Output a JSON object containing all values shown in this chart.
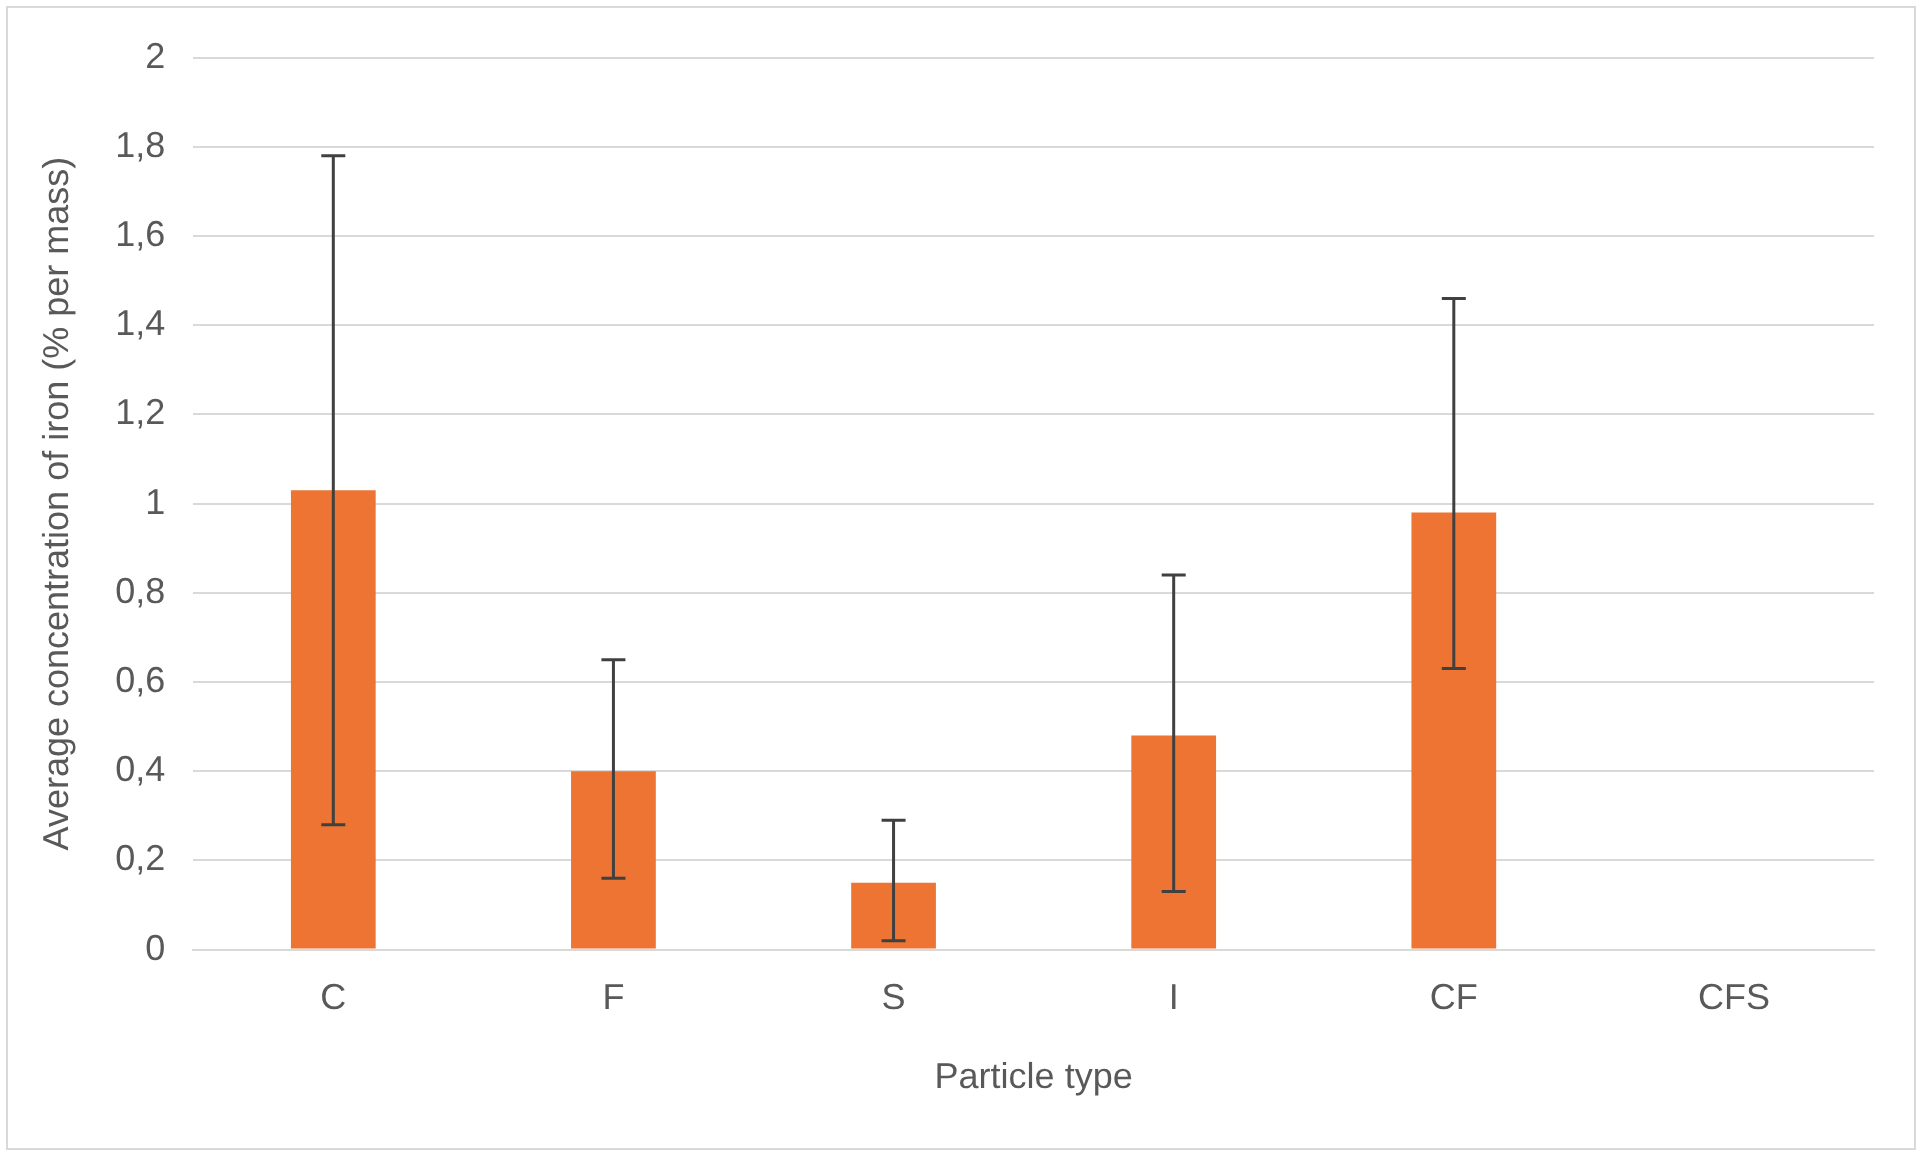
{
  "chart_data": {
    "type": "bar",
    "xlabel": "Particle type",
    "ylabel": "Average concentration of iron (% per mass)",
    "categories": [
      "C",
      "F",
      "S",
      "I",
      "CF",
      "CFS"
    ],
    "series": [
      {
        "color": "#ed7433",
        "values": [
          1.03,
          0.4,
          0.15,
          0.48,
          0.98,
          0
        ],
        "errors": [
          [
            0.28,
            1.78
          ],
          [
            0.16,
            0.65
          ],
          [
            0.02,
            0.29
          ],
          [
            0.13,
            0.84
          ],
          [
            0.63,
            1.46
          ],
          null
        ]
      }
    ],
    "ylim": [
      0,
      2
    ],
    "yticks": [
      0,
      {
        "value": 0.2,
        "label": "0,2"
      },
      {
        "value": 0.4,
        "label": "0,4"
      },
      {
        "value": 0.6,
        "label": "0,6"
      },
      {
        "value": 0.8,
        "label": "0,8"
      },
      1,
      {
        "value": 1.2,
        "label": "1,2"
      },
      {
        "value": 1.4,
        "label": "1,4"
      },
      {
        "value": 1.6,
        "label": "1,6"
      },
      {
        "value": 1.8,
        "label": "1,8"
      },
      2
    ],
    "grid": "y",
    "legend": false
  }
}
